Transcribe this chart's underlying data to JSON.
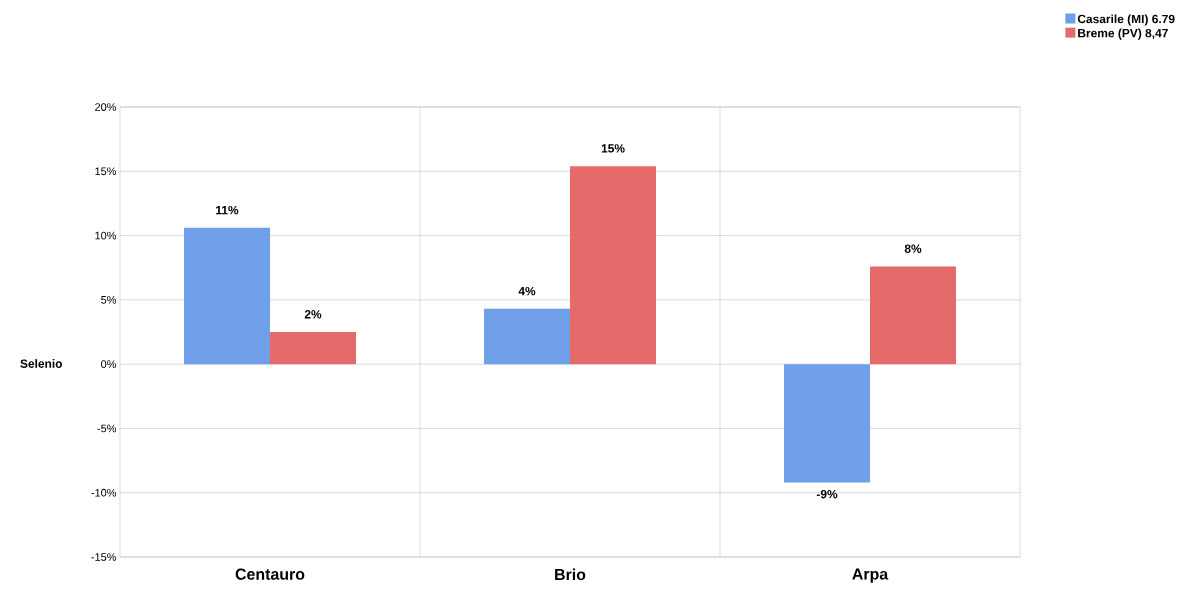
{
  "chart_data": {
    "type": "bar",
    "ylabel": "Selenio",
    "categories": [
      "Centauro",
      "Brio",
      "Arpa"
    ],
    "series": [
      {
        "name": "Casarile (MI) 6.79",
        "color": "#6f9fe8",
        "values": [
          10.6,
          4.3,
          -9.2
        ],
        "value_labels": [
          "11%",
          "4%",
          "-9%"
        ]
      },
      {
        "name": "Breme (PV) 8,47",
        "color": "#e56b6b",
        "values": [
          2.5,
          15.4,
          7.6
        ],
        "value_labels": [
          "2%",
          "15%",
          "8%"
        ]
      }
    ],
    "ylim": [
      -15,
      20
    ],
    "yticks": [
      {
        "value": -15,
        "label": "-15%"
      },
      {
        "value": -10,
        "label": "-10%"
      },
      {
        "value": -5,
        "label": "-5%"
      },
      {
        "value": 0,
        "label": "0%"
      },
      {
        "value": 5,
        "label": "5%"
      },
      {
        "value": 10,
        "label": "10%"
      },
      {
        "value": 15,
        "label": "15%"
      },
      {
        "value": 20,
        "label": "20%"
      }
    ],
    "grid": true,
    "legend": "top right"
  }
}
